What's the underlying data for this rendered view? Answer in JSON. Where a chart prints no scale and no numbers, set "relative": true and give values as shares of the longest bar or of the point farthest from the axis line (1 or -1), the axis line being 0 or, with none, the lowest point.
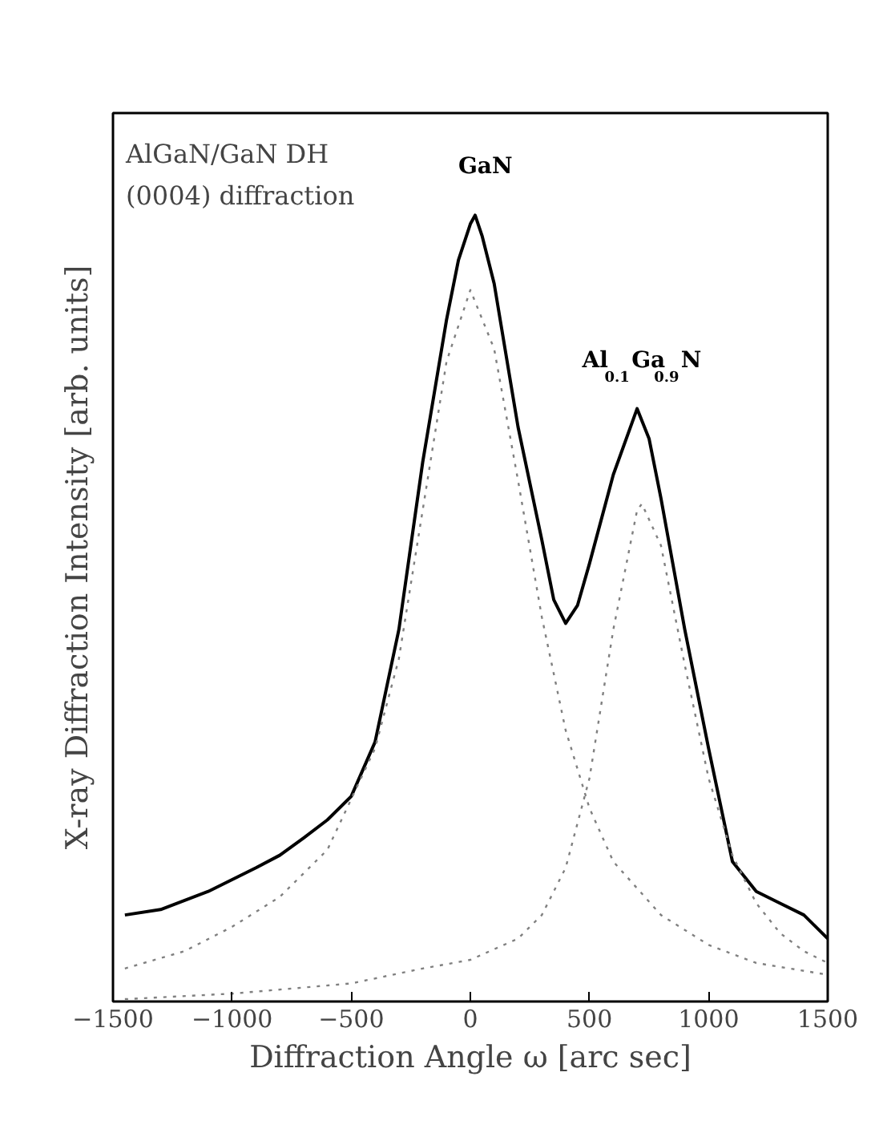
{
  "chart_data": {
    "type": "line",
    "relative": true,
    "xlabel": "Diffraction Angle ω [arc sec]",
    "ylabel": "X-ray Diffraction Intensity [arb. units]",
    "xlim": [
      -1500,
      1500
    ],
    "xticks": [
      -1500,
      -1000,
      -500,
      0,
      500,
      1000,
      1500
    ],
    "grid": false,
    "marker": "none",
    "annotations": [
      "AlGaN/GaN DH",
      "(0004) diffraction",
      {
        "text": "GaN",
        "x": 20,
        "y": 1.0
      },
      {
        "text": "Al$_{0.1}$Ga$_{0.9}$N",
        "x": 700,
        "y": 0.754
      }
    ],
    "series": [
      {
        "color": "#000000",
        "line_style": "solid",
        "x": [
          -1450,
          -1300,
          -1100,
          -1000,
          -900,
          -800,
          -700,
          -600,
          -500,
          -400,
          -300,
          -200,
          -100,
          -50,
          0,
          20,
          50,
          100,
          200,
          300,
          350,
          400,
          450,
          500,
          600,
          700,
          750,
          800,
          900,
          1000,
          1100,
          1200,
          1300,
          1400,
          1500
        ],
        "values": [
          0.11,
          0.117,
          0.14,
          0.155,
          0.17,
          0.186,
          0.208,
          0.231,
          0.261,
          0.33,
          0.473,
          0.686,
          0.867,
          0.943,
          0.989,
          1.0,
          0.973,
          0.913,
          0.731,
          0.587,
          0.511,
          0.481,
          0.504,
          0.557,
          0.67,
          0.754,
          0.716,
          0.64,
          0.473,
          0.322,
          0.178,
          0.14,
          0.125,
          0.11,
          0.08
        ]
      },
      {
        "color": "#808080",
        "line_style": "dotted",
        "x": [
          -1450,
          -1200,
          -1000,
          -800,
          -600,
          -400,
          -300,
          -200,
          -100,
          0,
          100,
          200,
          300,
          400,
          500,
          600,
          800,
          1000,
          1200,
          1500
        ],
        "values": [
          0.042,
          0.064,
          0.095,
          0.133,
          0.193,
          0.322,
          0.436,
          0.625,
          0.814,
          0.905,
          0.83,
          0.663,
          0.489,
          0.345,
          0.246,
          0.178,
          0.11,
          0.072,
          0.049,
          0.034
        ]
      },
      {
        "color": "#808080",
        "line_style": "dotted",
        "x": [
          -1450,
          -1000,
          -500,
          -200,
          0,
          200,
          300,
          400,
          500,
          600,
          700,
          720,
          800,
          900,
          1000,
          1100,
          1200,
          1300,
          1400,
          1500
        ],
        "values": [
          0.003,
          0.01,
          0.023,
          0.042,
          0.053,
          0.08,
          0.11,
          0.17,
          0.284,
          0.473,
          0.625,
          0.633,
          0.58,
          0.428,
          0.284,
          0.186,
          0.125,
          0.087,
          0.064,
          0.049
        ]
      }
    ]
  }
}
